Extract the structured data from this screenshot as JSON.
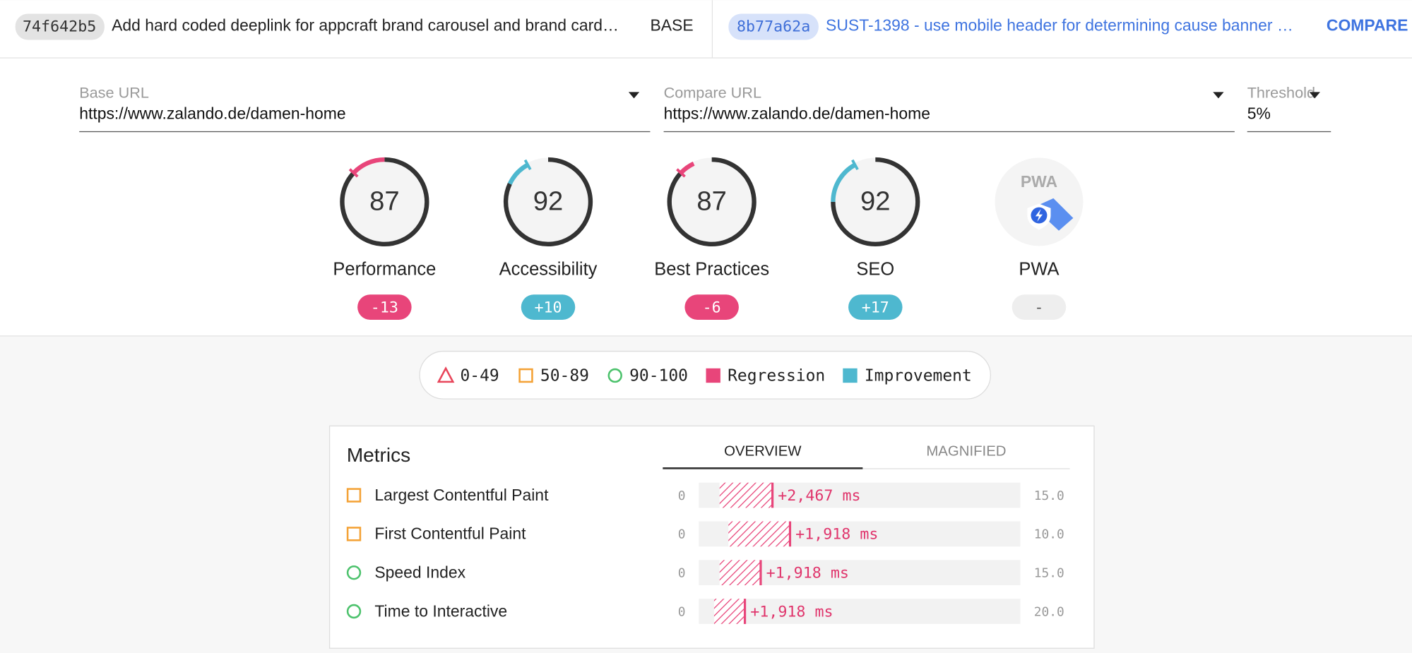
{
  "header": {
    "base": {
      "hash": "74f642b5",
      "title": "Add hard coded deeplink for appcraft brand carousel and brand card…",
      "label": "BASE"
    },
    "compare": {
      "hash": "8b77a62a",
      "title": "SUST-1398 - use mobile header for determining cause banner …",
      "label": "COMPARE"
    }
  },
  "inputs": [
    {
      "label": "Base URL",
      "value": "https://www.zalando.de/damen-home"
    },
    {
      "label": "Compare URL",
      "value": "https://www.zalando.de/damen-home"
    },
    {
      "label": "Threshold",
      "value": "5%"
    }
  ],
  "categories": [
    {
      "name": "Performance",
      "score": 87,
      "delta": -13
    },
    {
      "name": "Accessibility",
      "score": 92,
      "delta": {
        "value": 10,
        "label": "+10"
      }
    },
    {
      "name": "Best Practices",
      "score": 87,
      "delta": -6
    },
    {
      "name": "SEO",
      "score": 92,
      "delta": {
        "value": 17,
        "label": "+17"
      }
    },
    {
      "name": "PWA",
      "badge": "PWA",
      "delta": "-"
    }
  ],
  "legend": {
    "items": [
      {
        "label": "0-49",
        "shape": "triangle",
        "color": "#e8455a"
      },
      {
        "label": "50-89",
        "shape": "square",
        "color": "#f4a236"
      },
      {
        "label": "90-100",
        "shape": "circle",
        "color": "#4cc26c"
      },
      {
        "label": "Regression",
        "shape": "filled",
        "color": "#e8457a"
      },
      {
        "label": "Improvement",
        "shape": "filled",
        "color": "#4eb8cf"
      }
    ]
  },
  "metrics": {
    "title": "Metrics",
    "tabs": [
      "OVERVIEW",
      "MAGNIFIED"
    ],
    "active_tab": 0,
    "rows": [
      {
        "name": "Largest Contentful Paint",
        "rating": 1,
        "min": 0,
        "max": {
          "value": 15,
          "label": "15.0"
        },
        "base": 0.97,
        "delta": {
          "value": 2467,
          "label": "+2,467 ms"
        }
      },
      {
        "name": "First Contentful Paint",
        "rating": 1,
        "min": 0,
        "max": {
          "value": 10,
          "label": "10.0"
        },
        "base": 0.92,
        "delta": {
          "value": 1918,
          "label": "+1,918 ms"
        }
      },
      {
        "name": "Speed Index",
        "rating": 2,
        "min": 0,
        "max": {
          "value": 15,
          "label": "15.0"
        },
        "base": 0.97,
        "delta": {
          "value": 1918,
          "label": "+1,918 ms"
        }
      },
      {
        "name": "Time to Interactive",
        "rating": 2,
        "min": 0,
        "max": {
          "value": 20,
          "label": "20.0"
        },
        "base": 0.95,
        "delta": {
          "value": 1918,
          "label": "+1,918 ms"
        }
      }
    ]
  }
}
